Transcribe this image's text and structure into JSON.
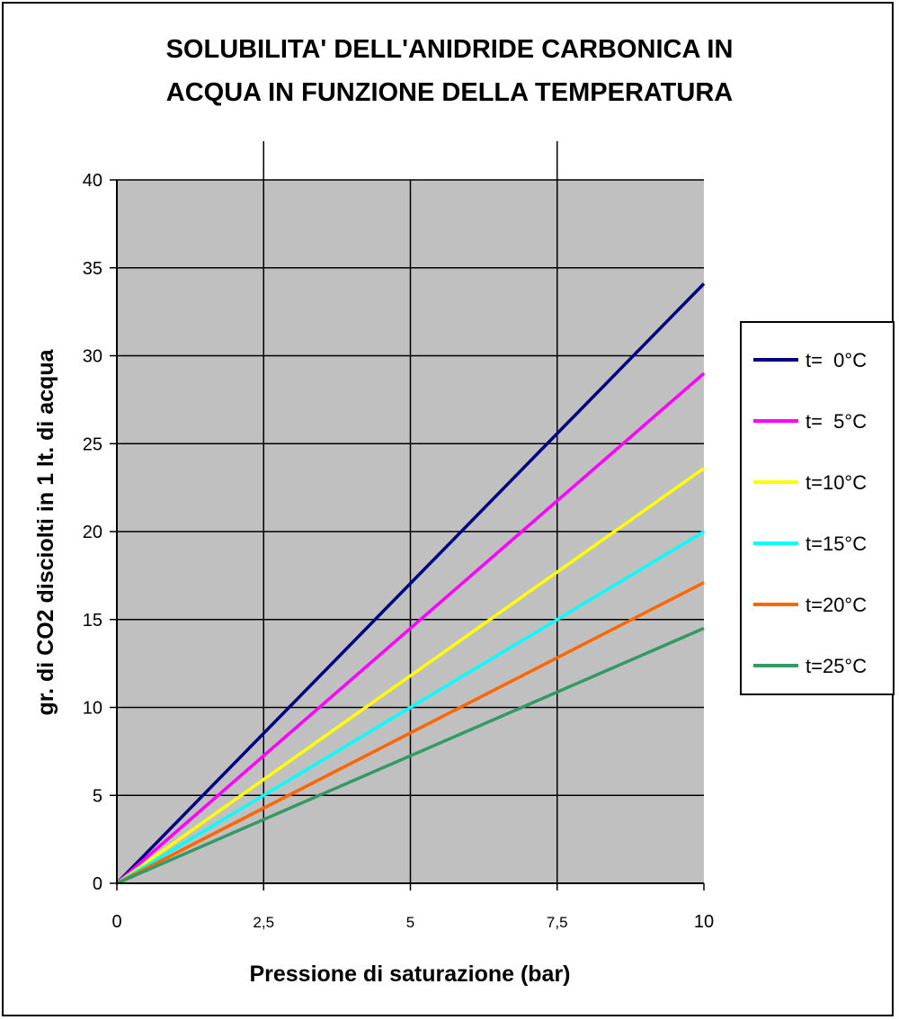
{
  "chart_data": {
    "type": "line",
    "title_lines": [
      "SOLUBILITA' DELL'ANIDRIDE CARBONICA IN",
      "ACQUA IN FUNZIONE DELLA TEMPERATURA"
    ],
    "xlabel": "Pressione di saturazione (bar)",
    "ylabel": "gr. di CO2 disciolti in 1 lt. di acqua",
    "xlim": [
      0,
      10
    ],
    "ylim": [
      0,
      40
    ],
    "x_ticks": [
      {
        "value": 0,
        "label": "0"
      },
      {
        "value": 2.5,
        "label": "2,5"
      },
      {
        "value": 5,
        "label": "5"
      },
      {
        "value": 7.5,
        "label": "7,5"
      },
      {
        "value": 10,
        "label": "10"
      }
    ],
    "y_ticks": [
      {
        "value": 0,
        "label": "0"
      },
      {
        "value": 5,
        "label": "5"
      },
      {
        "value": 10,
        "label": "10"
      },
      {
        "value": 15,
        "label": "15"
      },
      {
        "value": 20,
        "label": "20"
      },
      {
        "value": 25,
        "label": "25"
      },
      {
        "value": 30,
        "label": "30"
      },
      {
        "value": 35,
        "label": "35"
      },
      {
        "value": 40,
        "label": "40"
      }
    ],
    "grid": true,
    "legend_position": "right",
    "plot_background": "#c0c0c0",
    "series": [
      {
        "name": "t=  0°C",
        "color": "#000080",
        "x": [
          0,
          10
        ],
        "values": [
          0,
          34.1
        ]
      },
      {
        "name": "t=  5°C",
        "color": "#ff00ff",
        "x": [
          0,
          10
        ],
        "values": [
          0,
          29.0
        ]
      },
      {
        "name": "t=10°C",
        "color": "#ffff00",
        "x": [
          0,
          10
        ],
        "values": [
          0,
          23.6
        ]
      },
      {
        "name": "t=15°C",
        "color": "#00ffff",
        "x": [
          0,
          10
        ],
        "values": [
          0,
          20.0
        ]
      },
      {
        "name": "t=20°C",
        "color": "#ff6600",
        "x": [
          0,
          10
        ],
        "values": [
          0,
          17.1
        ]
      },
      {
        "name": "t=25°C",
        "color": "#339966",
        "x": [
          0,
          10
        ],
        "values": [
          0,
          14.5
        ]
      }
    ]
  }
}
